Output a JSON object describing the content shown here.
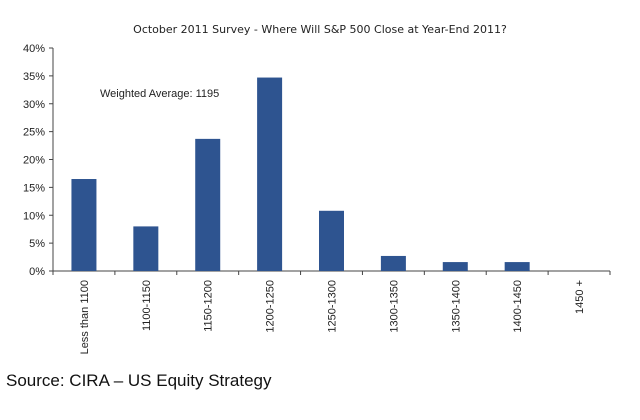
{
  "chart_data": {
    "type": "bar",
    "title": "October 2011 Survey - Where Will S&P 500 Close at Year-End 2011?",
    "categories": [
      "Less than 1100",
      "1100-1150",
      "1150-1200",
      "1200-1250",
      "1250-1300",
      "1300-1350",
      "1350-1400",
      "1400-1450",
      "1450 +"
    ],
    "values": [
      16.5,
      8,
      23.7,
      34.7,
      10.8,
      2.7,
      1.6,
      1.6,
      0
    ],
    "ylim": [
      0,
      40
    ],
    "yticks": [
      0,
      5,
      10,
      15,
      20,
      25,
      30,
      35,
      40
    ],
    "ytick_labels": [
      "0%",
      "5%",
      "10%",
      "15%",
      "20%",
      "25%",
      "30%",
      "35%",
      "40%"
    ],
    "xlabel": "",
    "ylabel": "",
    "grid": false,
    "bar_color": "#2e5490",
    "annotation": "Weighted Average: 1195"
  },
  "source": "Source: CIRA – US Equity Strategy"
}
